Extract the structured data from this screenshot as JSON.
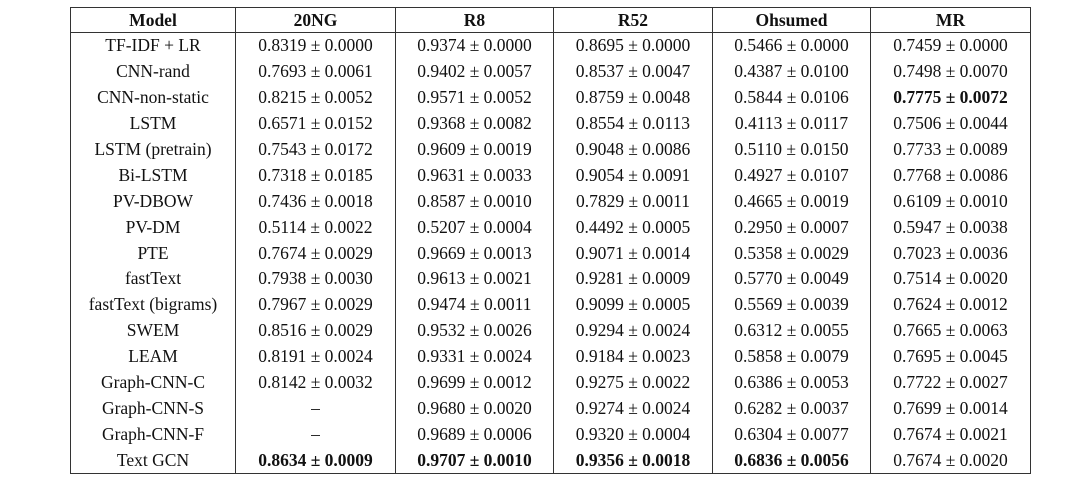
{
  "table": {
    "header": [
      "Model",
      "20NG",
      "R8",
      "R52",
      "Ohsumed",
      "MR"
    ],
    "rows": [
      [
        "TF-IDF + LR",
        "0.8319 ± 0.0000",
        "0.9374 ± 0.0000",
        "0.8695 ± 0.0000",
        "0.5466 ± 0.0000",
        "0.7459 ± 0.0000"
      ],
      [
        "CNN-rand",
        "0.7693 ± 0.0061",
        "0.9402 ± 0.0057",
        "0.8537 ± 0.0047",
        "0.4387 ± 0.0100",
        "0.7498 ± 0.0070"
      ],
      [
        "CNN-non-static",
        "0.8215 ± 0.0052",
        "0.9571 ± 0.0052",
        "0.8759 ± 0.0048",
        "0.5844 ± 0.0106",
        "0.7775 ± 0.0072"
      ],
      [
        "LSTM",
        "0.6571 ± 0.0152",
        "0.9368 ± 0.0082",
        "0.8554 ± 0.0113",
        "0.4113 ± 0.0117",
        "0.7506 ± 0.0044"
      ],
      [
        "LSTM (pretrain)",
        "0.7543 ± 0.0172",
        "0.9609 ± 0.0019",
        "0.9048 ± 0.0086",
        "0.5110 ± 0.0150",
        "0.7733 ± 0.0089"
      ],
      [
        "Bi-LSTM",
        "0.7318 ± 0.0185",
        "0.9631 ± 0.0033",
        "0.9054 ± 0.0091",
        "0.4927 ± 0.0107",
        "0.7768 ± 0.0086"
      ],
      [
        "PV-DBOW",
        "0.7436 ± 0.0018",
        "0.8587 ± 0.0010",
        "0.7829 ± 0.0011",
        "0.4665 ± 0.0019",
        "0.6109 ± 0.0010"
      ],
      [
        "PV-DM",
        "0.5114 ± 0.0022",
        "0.5207 ± 0.0004",
        "0.4492 ± 0.0005",
        "0.2950 ± 0.0007",
        "0.5947 ± 0.0038"
      ],
      [
        "PTE",
        "0.7674 ± 0.0029",
        "0.9669 ± 0.0013",
        "0.9071 ± 0.0014",
        "0.5358 ± 0.0029",
        "0.7023 ± 0.0036"
      ],
      [
        "fastText",
        "0.7938 ± 0.0030",
        "0.9613 ± 0.0021",
        "0.9281 ± 0.0009",
        "0.5770 ± 0.0049",
        "0.7514 ± 0.0020"
      ],
      [
        "fastText (bigrams)",
        "0.7967 ± 0.0029",
        "0.9474 ± 0.0011",
        "0.9099 ± 0.0005",
        "0.5569 ± 0.0039",
        "0.7624 ± 0.0012"
      ],
      [
        "SWEM",
        "0.8516 ± 0.0029",
        "0.9532 ± 0.0026",
        "0.9294 ± 0.0024",
        "0.6312 ± 0.0055",
        "0.7665 ± 0.0063"
      ],
      [
        "LEAM",
        "0.8191 ± 0.0024",
        "0.9331 ± 0.0024",
        "0.9184 ± 0.0023",
        "0.5858 ± 0.0079",
        "0.7695 ± 0.0045"
      ],
      [
        "Graph-CNN-C",
        "0.8142 ± 0.0032",
        "0.9699 ± 0.0012",
        "0.9275 ± 0.0022",
        "0.6386 ± 0.0053",
        "0.7722 ± 0.0027"
      ],
      [
        "Graph-CNN-S",
        "–",
        "0.9680 ± 0.0020",
        "0.9274 ± 0.0024",
        "0.6282 ± 0.0037",
        "0.7699 ± 0.0014"
      ],
      [
        "Graph-CNN-F",
        "–",
        "0.9689 ± 0.0006",
        "0.9320 ± 0.0004",
        "0.6304 ± 0.0077",
        "0.7674 ± 0.0021"
      ],
      [
        "Text GCN",
        "0.8634 ± 0.0009",
        "0.9707 ± 0.0010",
        "0.9356 ± 0.0018",
        "0.6836 ± 0.0056",
        "0.7674 ± 0.0020"
      ]
    ],
    "bold_cells": [
      [
        2,
        5
      ],
      [
        16,
        1
      ],
      [
        16,
        2
      ],
      [
        16,
        3
      ],
      [
        16,
        4
      ]
    ]
  }
}
